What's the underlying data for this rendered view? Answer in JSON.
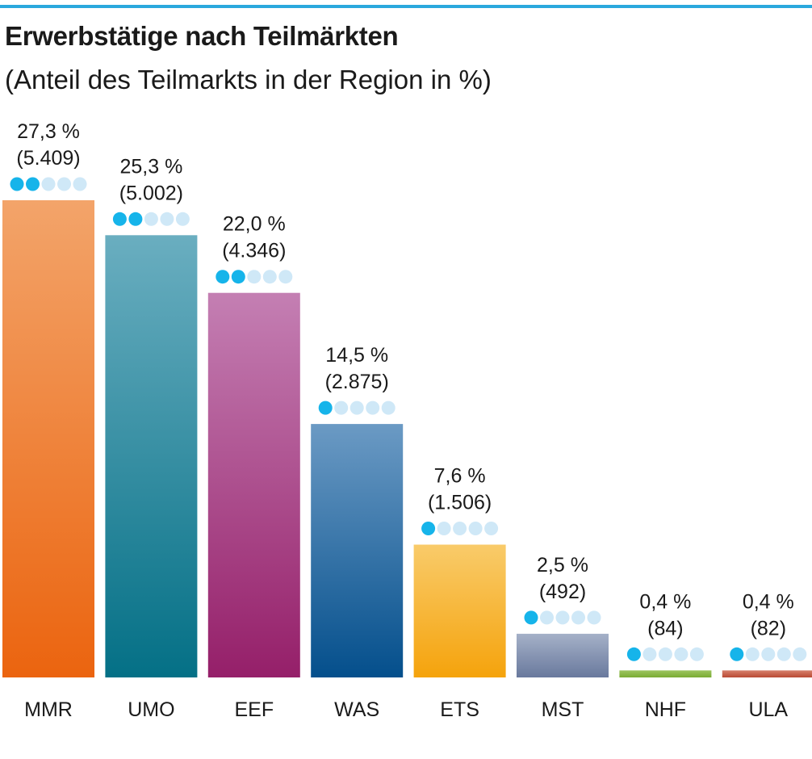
{
  "header": {
    "title": "Erwerbstätige nach Teilmärkten",
    "subtitle": "(Anteil des Teilmarkts in der Region in %)"
  },
  "colors": {
    "rule": "#2aa8dd",
    "dot_on": "#16b4ea",
    "dot_off": "#cfe8f7"
  },
  "chart_data": {
    "type": "bar",
    "title": "Erwerbstätige nach Teilmärkten",
    "subtitle": "(Anteil des Teilmarkts in der Region in %)",
    "xlabel": "",
    "ylabel": "",
    "ylim": [
      0,
      27.3
    ],
    "grid": false,
    "categories": [
      "MMR",
      "UMO",
      "EEF",
      "WAS",
      "ETS",
      "MST",
      "NHF",
      "ULA"
    ],
    "values": [
      27.3,
      25.3,
      22.0,
      14.5,
      7.6,
      2.5,
      0.4,
      0.4
    ],
    "value_labels": [
      "27,3 %",
      "25,3 %",
      "22,0 %",
      "14,5 %",
      "7,6 %",
      "2,5 %",
      "0,4 %",
      "0,4 %"
    ],
    "absolute_labels": [
      "(5.409)",
      "(5.002)",
      "(4.346)",
      "(2.875)",
      "(1.506)",
      "(492)",
      "(84)",
      "(82)"
    ],
    "dots_filled": [
      2,
      2,
      2,
      1,
      1,
      1,
      1,
      1
    ],
    "dots_total": 5,
    "bar_colors": [
      [
        "#f3a46a",
        "#eb640f"
      ],
      [
        "#6aaec0",
        "#047086"
      ],
      [
        "#c47fb3",
        "#951f69"
      ],
      [
        "#6b9ac4",
        "#044f8c"
      ],
      [
        "#f9cb6a",
        "#f5a30c"
      ],
      [
        "#a5b1c8",
        "#69799d"
      ],
      [
        "#9cc45f",
        "#7aac34"
      ],
      [
        "#d6806b",
        "#b94a35"
      ]
    ]
  }
}
